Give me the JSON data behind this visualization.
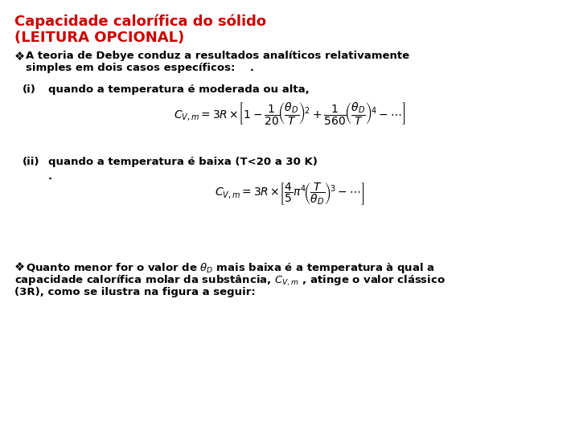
{
  "title_line1": "Capacidade calorífica do sólido",
  "title_line2": "(LEITURA OPCIONAL)",
  "title_color": "#CC0000",
  "title_fontsize": 13,
  "bg_color": "#FFFFFF",
  "body_fontsize": 9.5,
  "formula_fontsize": 10,
  "bullet": "❖",
  "text1a": "A teoria de Debye conduz a resultados analíticos relativamente",
  "text1b": "simples em dois casos específicos:    .",
  "label_i": "(i)",
  "text_i": "quando a temperatura é moderada ou alta,",
  "formula1": "$C_{V,m} = 3R\\times\\!\\left[1 - \\dfrac{1}{20}\\!\\left(\\dfrac{\\theta_D}{T}\\right)^{\\!2} + \\dfrac{1}{560}\\!\\left(\\dfrac{\\theta_D}{T}\\right)^{\\!4} - \\cdots\\right]$",
  "label_ii": "(ii)",
  "text_ii": "quando a temperatura é baixa (T<20 a 30 K)",
  "formula2": "$C_{V,m} = 3R\\times\\!\\left[\\dfrac{4}{5}\\pi^4\\!\\left(\\dfrac{T}{\\theta_D}\\right)^{\\!3} - \\cdots\\right]$",
  "bullet2": "❖",
  "text3a": "Quanto menor for o valor de $\\theta_D$ mais baixa é a temperatura à qual a",
  "text3b": "capacidade calorífica molar da substância, $C_{V,m}$ , atinge o valor clássico",
  "text3c": "(3R), como se ilustra na figura a seguir:"
}
